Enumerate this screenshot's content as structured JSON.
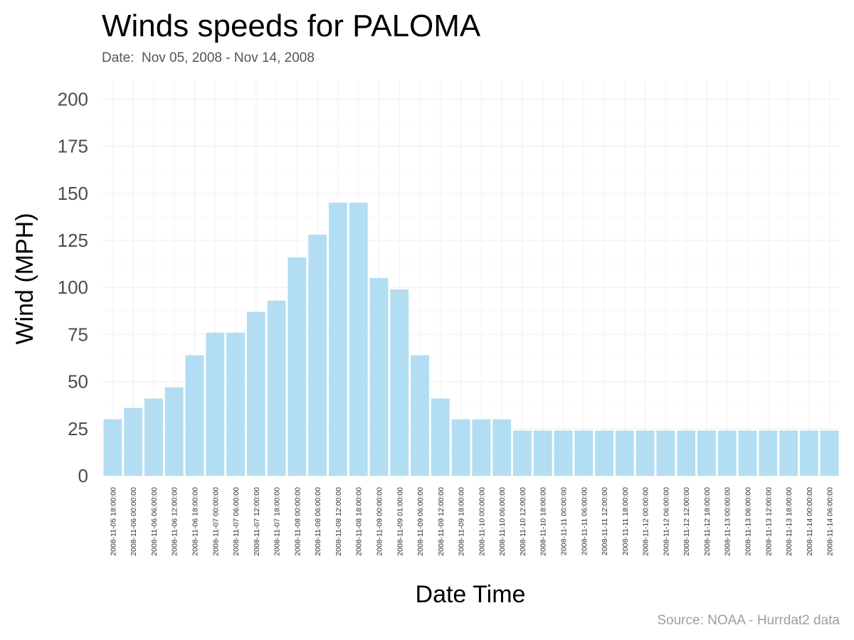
{
  "chart_data": {
    "type": "bar",
    "title": "Winds speeds for PALOMA",
    "subtitle": "Date:  Nov 05, 2008 - Nov 14, 2008",
    "caption": "Source: NOAA - Hurrdat2 data",
    "xlabel": "Date Time",
    "ylabel": "Wind (MPH)",
    "ylim": [
      0,
      210
    ],
    "yticks": [
      0,
      25,
      50,
      75,
      100,
      125,
      150,
      175,
      200
    ],
    "grid": true,
    "bar_color": "#b3ddf2",
    "categories": [
      "2008-11-05 18:00:00",
      "2008-11-06 00:00:00",
      "2008-11-06 06:00:00",
      "2008-11-06 12:00:00",
      "2008-11-06 18:00:00",
      "2008-11-07 00:00:00",
      "2008-11-07 06:00:00",
      "2008-11-07 12:00:00",
      "2008-11-07 18:00:00",
      "2008-11-08 00:00:00",
      "2008-11-08 06:00:00",
      "2008-11-08 12:00:00",
      "2008-11-08 18:00:00",
      "2008-11-09 00:00:00",
      "2008-11-09 01:00:00",
      "2008-11-09 06:00:00",
      "2008-11-09 12:00:00",
      "2008-11-09 18:00:00",
      "2008-11-10 00:00:00",
      "2008-11-10 06:00:00",
      "2008-11-10 12:00:00",
      "2008-11-10 18:00:00",
      "2008-11-11 00:00:00",
      "2008-11-11 06:00:00",
      "2008-11-11 12:00:00",
      "2008-11-11 18:00:00",
      "2008-11-12 00:00:00",
      "2008-11-12 06:00:00",
      "2008-11-12 12:00:00",
      "2008-11-12 18:00:00",
      "2008-11-13 00:00:00",
      "2008-11-13 06:00:00",
      "2008-11-13 12:00:00",
      "2008-11-13 18:00:00",
      "2008-11-14 00:00:00",
      "2008-11-14 06:00:00"
    ],
    "values": [
      30,
      36,
      41,
      47,
      64,
      76,
      76,
      87,
      93,
      116,
      128,
      145,
      145,
      105,
      99,
      64,
      41,
      30,
      30,
      30,
      24,
      24,
      24,
      24,
      24,
      24,
      24,
      24,
      24,
      24,
      24,
      24,
      24,
      24,
      24,
      24
    ]
  }
}
